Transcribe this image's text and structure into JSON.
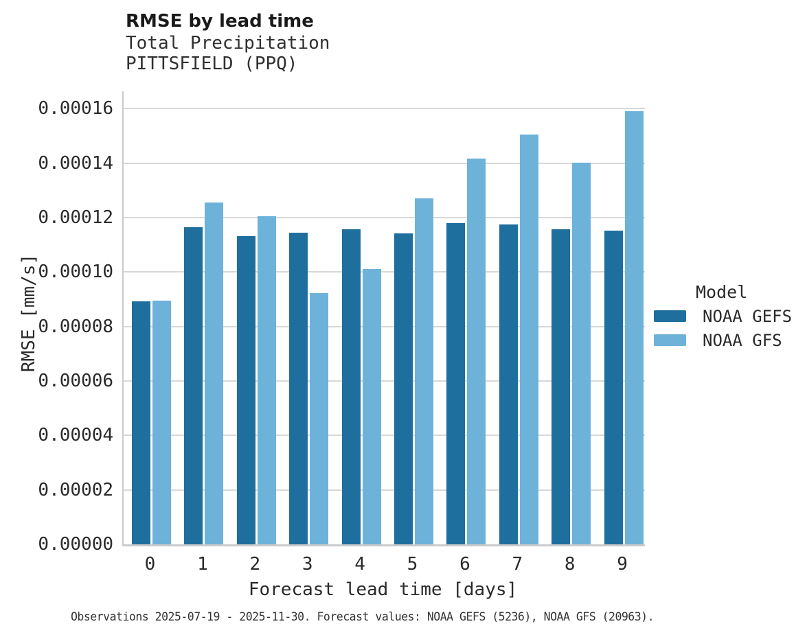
{
  "chart_data": {
    "type": "bar",
    "title": "RMSE by lead time",
    "subtitle": [
      "Total Precipitation",
      "PITTSFIELD (PPQ)"
    ],
    "xlabel": "Forecast lead time [days]",
    "ylabel": "RMSE [mm/s]",
    "categories": [
      "0",
      "1",
      "2",
      "3",
      "4",
      "5",
      "6",
      "7",
      "8",
      "9"
    ],
    "series": [
      {
        "name": "NOAA GEFS",
        "color": "#1f6f9e",
        "values": [
          8.93e-05,
          0.0001165,
          0.0001133,
          0.0001144,
          0.0001158,
          0.0001141,
          0.0001179,
          0.0001174,
          0.0001158,
          0.0001152
        ]
      },
      {
        "name": "NOAA GFS",
        "color": "#6db2d9",
        "values": [
          8.96e-05,
          0.0001255,
          0.0001205,
          9.24e-05,
          0.0001012,
          0.0001272,
          0.0001416,
          0.0001506,
          0.0001401,
          0.000159
        ]
      }
    ],
    "ylim": [
      0,
      0.0001664
    ],
    "yticks": [
      {
        "value": 0.0,
        "label": "0.00000"
      },
      {
        "value": 2e-05,
        "label": "0.00002"
      },
      {
        "value": 4e-05,
        "label": "0.00004"
      },
      {
        "value": 6e-05,
        "label": "0.00006"
      },
      {
        "value": 8e-05,
        "label": "0.00008"
      },
      {
        "value": 0.0001,
        "label": "0.00010"
      },
      {
        "value": 0.00012,
        "label": "0.00012"
      },
      {
        "value": 0.00014,
        "label": "0.00014"
      },
      {
        "value": 0.00016,
        "label": "0.00016"
      }
    ],
    "grid": "horizontal",
    "legend_title": "Model",
    "legend_position": "right"
  },
  "footer": {
    "note": "Observations 2025-07-19 - 2025-11-30. Forecast values: NOAA GEFS (5236), NOAA GFS (20963)."
  },
  "colors": {
    "gefs": "#1f6f9e",
    "gfs": "#6db2d9",
    "gridline": "#d8d8d8",
    "spine": "#cbcbcb"
  }
}
